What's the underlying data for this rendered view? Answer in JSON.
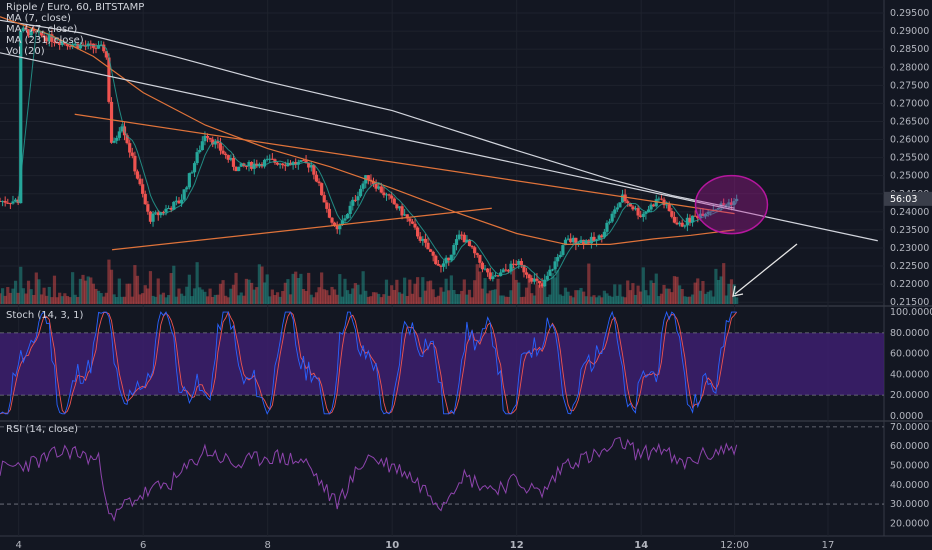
{
  "header": {
    "symbol_line": "Ripple / Euro, 60, BITSTAMP",
    "ma7": "MA (7, close)",
    "ma77": "MA (77, close)",
    "ma231": "MA (231, close)",
    "vol": "Vol (20)"
  },
  "panes": {
    "stoch_label": "Stoch (14, 3, 1)",
    "rsi_label": "RSI (14, close)"
  },
  "price_tag": "56:03",
  "colors": {
    "background": "#131722",
    "up": "#26a69a",
    "down": "#ef5350",
    "ma7": "#26a69a",
    "ma77": "#e0733a",
    "ma231": "#d1d4dc",
    "trendline": "#d1d4dc",
    "channel": "#e0733a",
    "highlight_circle": "#b5179e",
    "stoch_band": "#3d1f6e",
    "stoch_k": "#2962ff",
    "stoch_d": "#ef5350",
    "rsi_line": "#8e44ad"
  },
  "chart_data": [
    {
      "type": "candlestick",
      "title": "Ripple / Euro, 60, BITSTAMP",
      "y_ticks": [
        "0.29500",
        "0.29000",
        "0.28500",
        "0.28000",
        "0.27500",
        "0.27000",
        "0.26500",
        "0.26000",
        "0.25500",
        "0.25000",
        "0.24500",
        "0.24000",
        "0.23500",
        "0.23000",
        "0.22500",
        "0.22000",
        "0.21500"
      ],
      "ylim": [
        0.2145,
        0.2975
      ],
      "x_ticks": [
        "4",
        "6",
        "8",
        "10",
        "12",
        "14",
        "12:00",
        "17"
      ],
      "x_tick_days": [
        4,
        6,
        8,
        10,
        12,
        14,
        15.5,
        17
      ],
      "xlim": [
        3.7,
        17.9
      ],
      "key_prices": [
        {
          "x": 4.0,
          "y": 0.2905
        },
        {
          "x": 4.8,
          "y": 0.2865
        },
        {
          "x": 5.4,
          "y": 0.285
        },
        {
          "x": 5.5,
          "y": 0.257
        },
        {
          "x": 5.65,
          "y": 0.265
        },
        {
          "x": 5.9,
          "y": 0.25
        },
        {
          "x": 6.1,
          "y": 0.238
        },
        {
          "x": 6.6,
          "y": 0.243
        },
        {
          "x": 7.0,
          "y": 0.262
        },
        {
          "x": 7.5,
          "y": 0.252
        },
        {
          "x": 8.0,
          "y": 0.254
        },
        {
          "x": 8.7,
          "y": 0.253
        },
        {
          "x": 9.1,
          "y": 0.234
        },
        {
          "x": 9.6,
          "y": 0.25
        },
        {
          "x": 10.2,
          "y": 0.239
        },
        {
          "x": 10.8,
          "y": 0.224
        },
        {
          "x": 11.1,
          "y": 0.234
        },
        {
          "x": 11.6,
          "y": 0.221
        },
        {
          "x": 12.0,
          "y": 0.226
        },
        {
          "x": 12.4,
          "y": 0.219
        },
        {
          "x": 12.8,
          "y": 0.232
        },
        {
          "x": 13.3,
          "y": 0.232
        },
        {
          "x": 13.7,
          "y": 0.244
        },
        {
          "x": 14.0,
          "y": 0.239
        },
        {
          "x": 14.3,
          "y": 0.244
        },
        {
          "x": 14.6,
          "y": 0.236
        },
        {
          "x": 15.0,
          "y": 0.24
        },
        {
          "x": 15.5,
          "y": 0.243
        }
      ],
      "trendlines": [
        {
          "name": "descending",
          "x": [
            3.7,
            17.8
          ],
          "y": [
            0.284,
            0.232
          ]
        },
        {
          "name": "channel_upper",
          "x": [
            4.9,
            15.5
          ],
          "y": [
            0.267,
            0.2395
          ]
        },
        {
          "name": "channel_lower",
          "x": [
            5.5,
            11.6
          ],
          "y": [
            0.2295,
            0.241
          ]
        }
      ],
      "ma231_points": {
        "x": [
          3.7,
          5.0,
          6.5,
          8.0,
          10.0,
          12.0,
          13.5,
          14.5,
          15.5
        ],
        "y": [
          0.293,
          0.2895,
          0.283,
          0.276,
          0.268,
          0.257,
          0.249,
          0.2445,
          0.241
        ]
      },
      "ma77_points": {
        "x": [
          3.7,
          4.5,
          5.2,
          6.0,
          7.0,
          8.0,
          9.0,
          10.0,
          11.0,
          12.0,
          12.8,
          13.5,
          14.2,
          14.8,
          15.5
        ],
        "y": [
          0.294,
          0.289,
          0.283,
          0.273,
          0.264,
          0.2575,
          0.2525,
          0.2465,
          0.24,
          0.234,
          0.231,
          0.231,
          0.2325,
          0.2335,
          0.235
        ]
      },
      "volume_note": "Vol (20)"
    },
    {
      "type": "line",
      "title": "Stoch (14, 3, 1)",
      "y_ticks": [
        "100.0000",
        "80.0000",
        "60.0000",
        "40.0000",
        "20.0000",
        "0.0000"
      ],
      "ylim": [
        -3,
        103
      ],
      "band": [
        20,
        80
      ],
      "last_value": 100
    },
    {
      "type": "line",
      "title": "RSI (14, close)",
      "y_ticks": [
        "70.0000",
        "60.0000",
        "50.0000",
        "40.0000",
        "30.0000",
        "20.0000"
      ],
      "ylim": [
        15,
        72
      ],
      "band": [
        30,
        70
      ],
      "points_x": [
        3.7,
        4.3,
        4.8,
        5.3,
        5.5,
        5.7,
        6.0,
        6.5,
        7.0,
        7.5,
        8.0,
        8.6,
        9.1,
        9.6,
        10.2,
        10.8,
        11.1,
        11.6,
        12.0,
        12.4,
        12.8,
        13.3,
        13.7,
        14.0,
        14.3,
        14.6,
        15.0,
        15.5
      ],
      "points_y": [
        48,
        52,
        58,
        52,
        20,
        30,
        35,
        42,
        58,
        50,
        55,
        52,
        30,
        55,
        47,
        30,
        45,
        38,
        42,
        35,
        52,
        55,
        62,
        55,
        60,
        50,
        55,
        60
      ]
    }
  ]
}
